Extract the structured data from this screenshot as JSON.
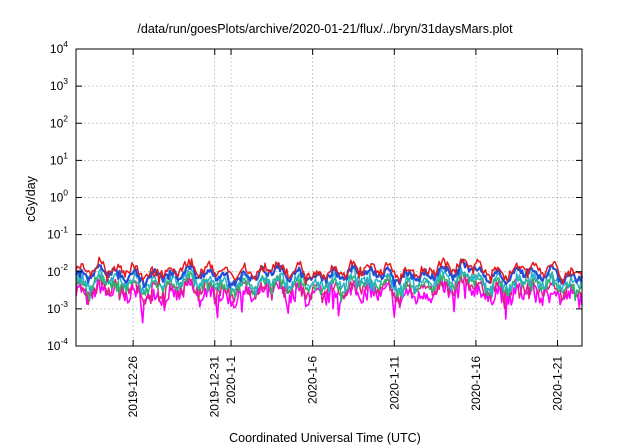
{
  "chart_data": {
    "type": "line",
    "title": "/data/run/goesPlots/archive/2020-01-21/flux/../bryn/31daysMars.plot",
    "xlabel": "Coordinated Universal Time (UTC)",
    "ylabel": "cGy/day",
    "yscale": "log",
    "ylim": [
      0.0001,
      10000
    ],
    "xlim": [
      "2019-12-22T12:00",
      "2020-01-22T12:00"
    ],
    "y_ticks": [
      {
        "base": "10",
        "exp": "-4",
        "value": 0.0001
      },
      {
        "base": "10",
        "exp": "-3",
        "value": 0.001
      },
      {
        "base": "10",
        "exp": "-2",
        "value": 0.01
      },
      {
        "base": "10",
        "exp": "-1",
        "value": 0.1
      },
      {
        "base": "10",
        "exp": "0",
        "value": 1
      },
      {
        "base": "10",
        "exp": "1",
        "value": 10
      },
      {
        "base": "10",
        "exp": "2",
        "value": 100
      },
      {
        "base": "10",
        "exp": "3",
        "value": 1000
      },
      {
        "base": "10",
        "exp": "4",
        "value": 10000
      }
    ],
    "x_ticks": [
      {
        "label": "2019-12-26",
        "date": "2019-12-26"
      },
      {
        "label": "2019-12-31",
        "date": "2019-12-31"
      },
      {
        "label": "2020-1-1",
        "date": "2020-01-01"
      },
      {
        "label": "2020-1-6",
        "date": "2020-01-06"
      },
      {
        "label": "2020-1-11",
        "date": "2020-01-11"
      },
      {
        "label": "2020-1-16",
        "date": "2020-01-16"
      },
      {
        "label": "2020-1-21",
        "date": "2020-01-21"
      }
    ],
    "grid": true,
    "series": [
      {
        "color": "#e41a1c",
        "approx_value": 0.011,
        "relative_noise": 0.12
      },
      {
        "color": "#1f4fd8",
        "approx_value": 0.0085,
        "relative_noise": 0.1
      },
      {
        "color": "#2ab0c8",
        "approx_value": 0.0055,
        "relative_noise": 0.14
      },
      {
        "color": "#27b866",
        "approx_value": 0.0045,
        "relative_noise": 0.14
      },
      {
        "color": "#e0208a",
        "approx_value": 0.0035,
        "relative_noise": 0.16
      },
      {
        "color": "#ff00ff",
        "approx_value": 0.0025,
        "relative_noise": 0.22
      }
    ]
  }
}
